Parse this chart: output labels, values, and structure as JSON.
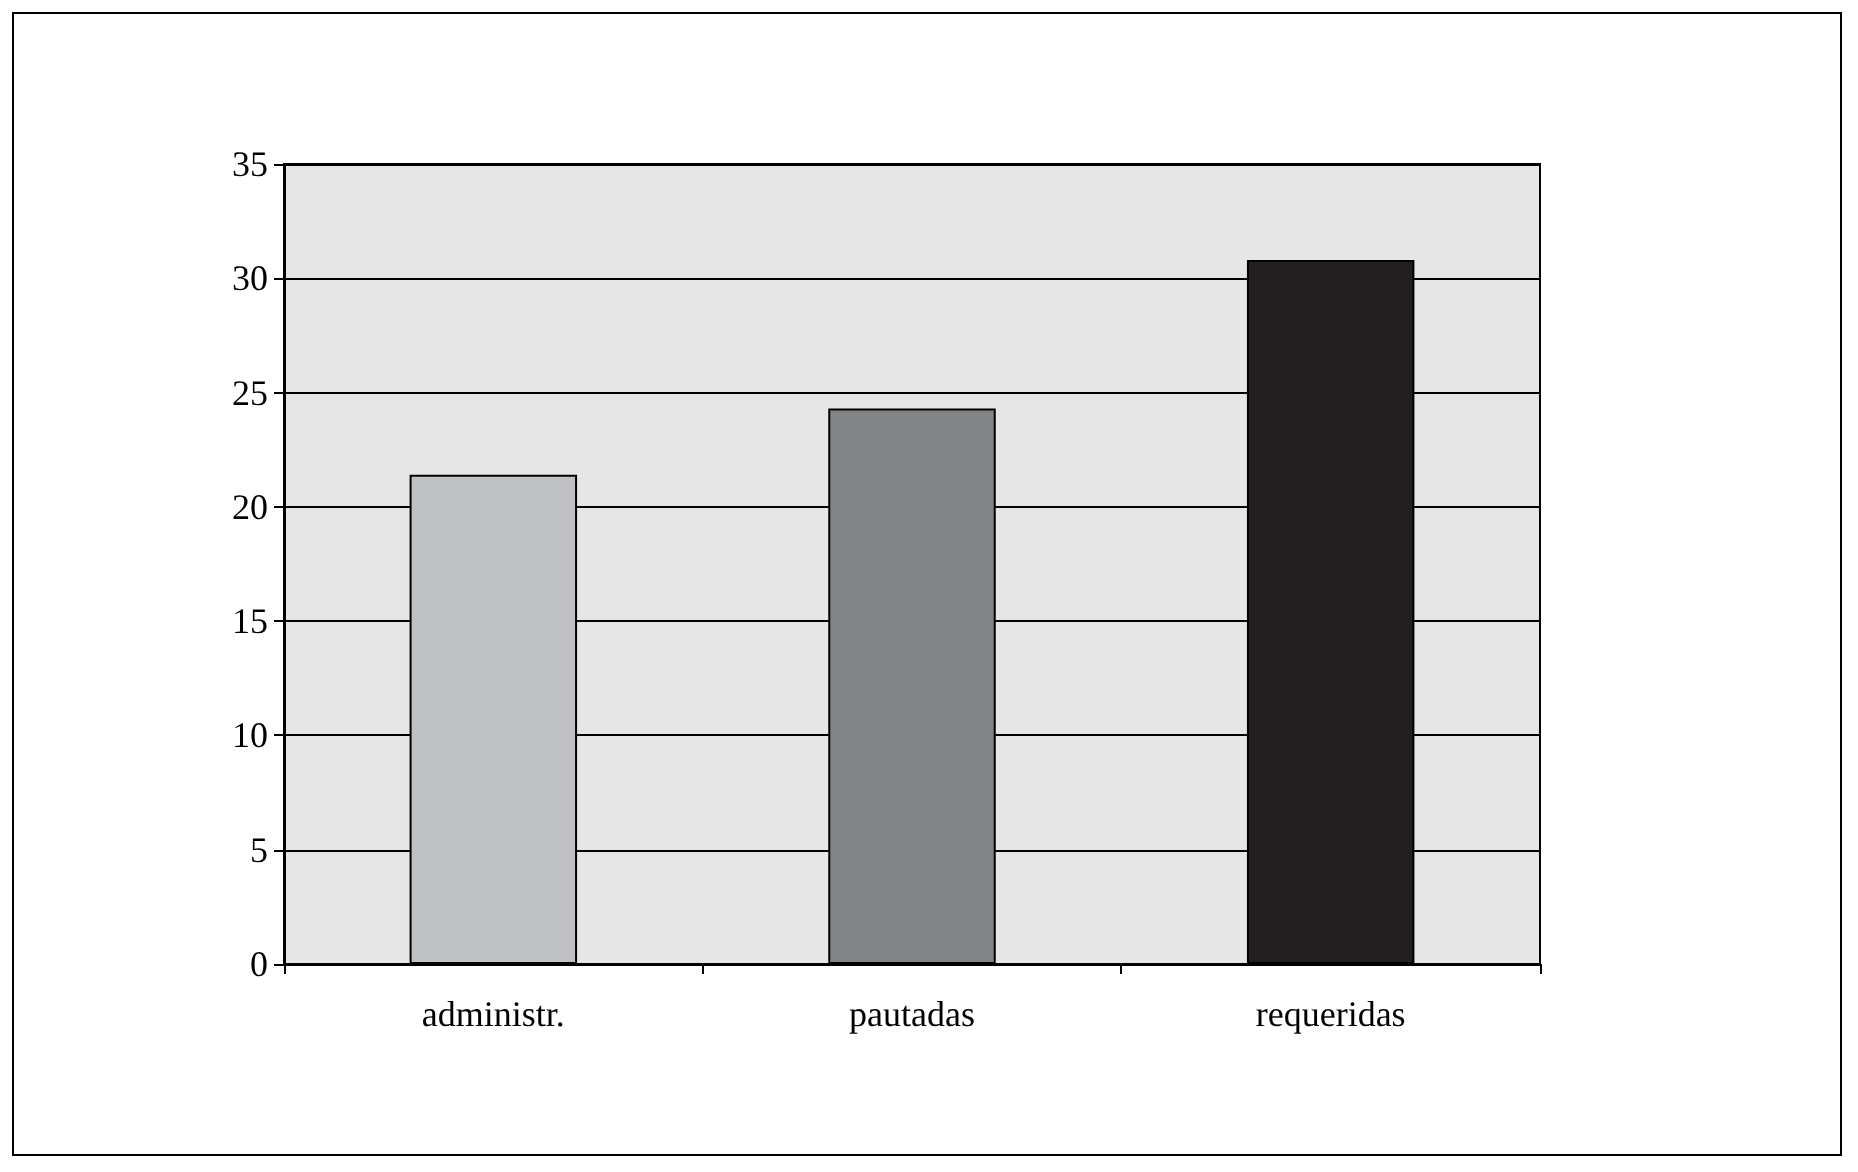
{
  "chart_data": {
    "type": "bar",
    "categories": [
      "administr.",
      "pautadas",
      "requeridas"
    ],
    "values": [
      21.4,
      24.3,
      30.8
    ],
    "colors": [
      "#c0c1c3",
      "#838486",
      "#231f20"
    ],
    "ylim": [
      0,
      35
    ],
    "yticks": [
      0,
      5,
      10,
      15,
      20,
      25,
      30,
      35
    ],
    "grid": "y"
  }
}
